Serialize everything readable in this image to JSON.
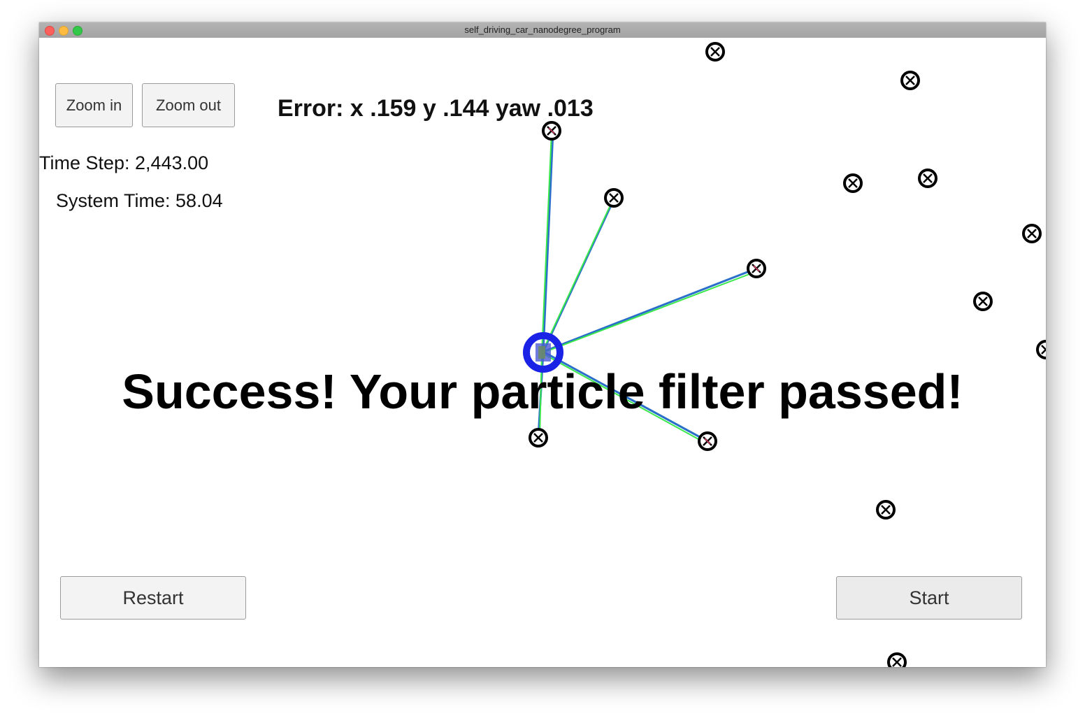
{
  "window": {
    "title": "self_driving_car_nanodegree_program"
  },
  "controls": {
    "zoom_in_label": "Zoom in",
    "zoom_out_label": "Zoom out",
    "restart_label": "Restart",
    "start_label": "Start"
  },
  "status": {
    "error_text": "Error: x .159 y .144 yaw .013",
    "time_step_text": "Time Step: 2,443.00",
    "system_time_text": "System Time: 58.04",
    "success_message": "Success! Your particle filter passed!"
  },
  "colors": {
    "vehicle": "#1a22e6",
    "observation_line": "#2a6fc9",
    "particle_line": "#39e84a",
    "landmark": "#000000",
    "landmark_hit_mark": "#e0406a"
  },
  "icons": {
    "landmark": "landmark-marker-icon",
    "vehicle": "vehicle-icon"
  }
}
